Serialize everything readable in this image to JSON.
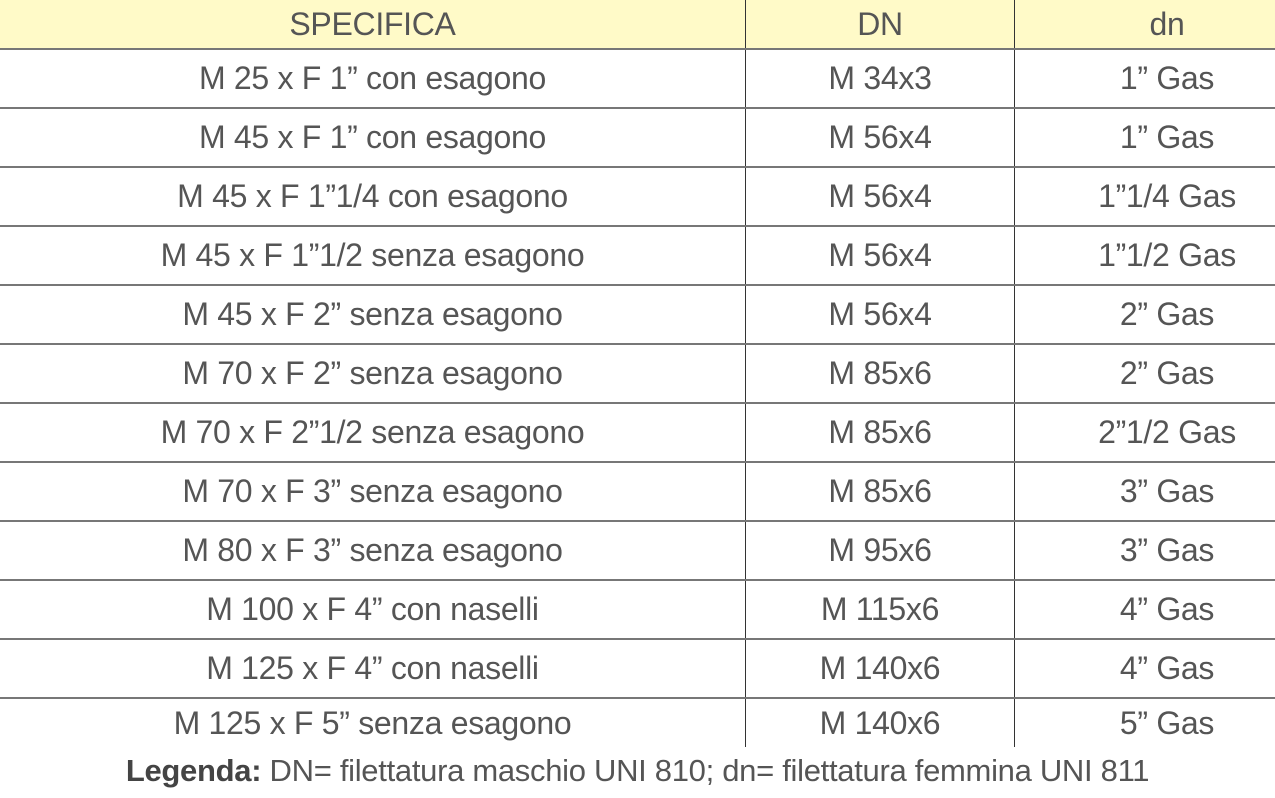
{
  "table": {
    "headers": [
      "SPECIFICA",
      "DN",
      "dn"
    ],
    "header_bg": "#fffac8",
    "rows": [
      [
        "M 25 x F 1” con esagono",
        "M 34x3",
        "1” Gas"
      ],
      [
        "M 45 x F 1” con esagono",
        "M 56x4",
        "1” Gas"
      ],
      [
        "M 45 x F 1”1/4 con esagono",
        "M 56x4",
        "1”1/4 Gas"
      ],
      [
        "M 45 x F 1”1/2 senza esagono",
        "M 56x4",
        "1”1/2 Gas"
      ],
      [
        "M 45 x F 2” senza esagono",
        "M 56x4",
        "2” Gas"
      ],
      [
        "M 70 x F 2” senza esagono",
        "M 85x6",
        "2” Gas"
      ],
      [
        "M 70 x F 2”1/2 senza esagono",
        "M 85x6",
        "2”1/2 Gas"
      ],
      [
        "M 70 x F 3” senza esagono",
        "M 85x6",
        "3” Gas"
      ],
      [
        "M 80 x F 3” senza esagono",
        "M 95x6",
        "3” Gas"
      ],
      [
        "M 100 x F 4” con naselli",
        "M 115x6",
        "4” Gas"
      ],
      [
        "M 125 x F 4” con naselli",
        "M 140x6",
        "4” Gas"
      ],
      [
        "M 125 x F 5” senza esagono",
        "M 140x6",
        "5” Gas"
      ]
    ]
  },
  "legend": {
    "label": "Legenda:",
    "text": " DN= filettatura maschio UNI 810; dn= filettatura femmina UNI 811"
  }
}
